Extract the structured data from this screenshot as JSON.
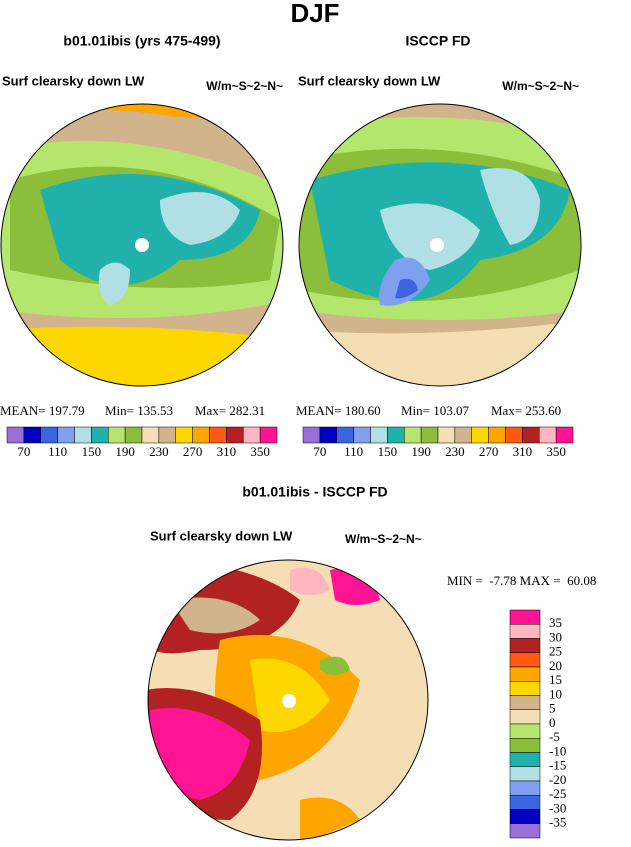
{
  "header": {
    "title": "DJF"
  },
  "panels": [
    {
      "title": "b01.01ibis (yrs 475-499)",
      "variable": "Surf clearsky down LW",
      "units": "W/m~S~2~N~",
      "stats": [
        "MEAN= 197.79",
        "Min= 135.53",
        "Max= 282.31"
      ],
      "colorbar_labels": [
        70,
        110,
        150,
        190,
        230,
        270,
        310,
        350
      ]
    },
    {
      "title": "ISCCP FD",
      "variable": "Surf clearsky down LW",
      "units": "W/m~S~2~N~",
      "stats": [
        "MEAN= 180.60",
        "Min= 103.07",
        "Max= 253.60"
      ],
      "colorbar_labels": [
        70,
        110,
        150,
        190,
        230,
        270,
        310,
        350
      ]
    }
  ],
  "colorbar_colors": [
    "#9b6fd8",
    "#0000c0",
    "#3c64e0",
    "#7fa0ef",
    "#b0e0e6",
    "#20b2aa",
    "#b4e66e",
    "#8cbe3c",
    "#f5deb3",
    "#d2b48c",
    "#ffd700",
    "#ffa500",
    "#ff5a10",
    "#b22222",
    "#ffb6c1",
    "#ff1493"
  ],
  "difference": {
    "title": "b01.01ibis - ISCCP FD",
    "variable": "Surf clearsky down LW",
    "units": "W/m~S~2~N~",
    "stats": "MIN =  -7.78 MAX =  60.08",
    "colorbar_labels": [
      35,
      30,
      25,
      20,
      15,
      10,
      5,
      0,
      -5,
      -10,
      -15,
      -20,
      -25,
      -30,
      -35
    ],
    "colorbar_colors": [
      "#ff1493",
      "#ffb6c1",
      "#b22222",
      "#ff5a10",
      "#ffa500",
      "#ffd700",
      "#d2b48c",
      "#f5deb3",
      "#b4e66e",
      "#8cbe3c",
      "#20b2aa",
      "#b0e0e6",
      "#7fa0ef",
      "#3c64e0",
      "#0000c0",
      "#9b6fd8"
    ]
  }
}
